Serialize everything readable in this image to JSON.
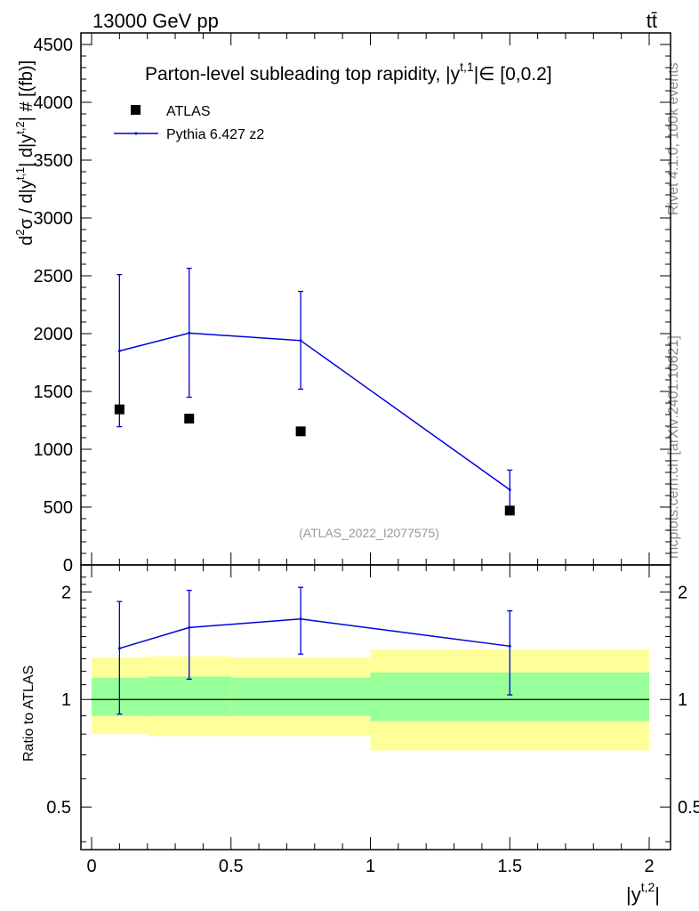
{
  "header": {
    "energy_label": "13000 GeV pp",
    "process_label": "tt̄"
  },
  "side_labels": {
    "rivet": "Rivet 4.1.0,  100k events",
    "mcplots": "mcplots.cern.ch [arXiv:2401.10621]"
  },
  "colors": {
    "data": "#000000",
    "mc": "#0000dd",
    "band_inner": "#99ff99",
    "band_outer": "#ffff99",
    "watermark": "#999999",
    "side_text": "#888888"
  },
  "chart_data": [
    {
      "type": "scatter",
      "title": "Parton-level subleading top rapidity, |y^{t,1}| ∈ [0,0.2]",
      "title_main": "Parton-level subleading top rapidity, |y",
      "title_sup": "t,1",
      "title_tail": "|∈ [0,0.2]",
      "ylabel": "d²σ / d|y^{t,1}| d|y^{t,2}| # [(fb)]",
      "ylabel_parts": {
        "a": "d",
        "b": "2",
        "c": "σ / d|y",
        "d": "t,1",
        "e": "| d|y",
        "f": "t,2",
        "g": "| # [(fb)]"
      },
      "watermark": "(ATLAS_2022_I2077575)",
      "xlim": [
        0,
        2
      ],
      "ylim": [
        0,
        4600
      ],
      "yticks": [
        0,
        500,
        1000,
        1500,
        2000,
        2500,
        3000,
        3500,
        4000,
        4500
      ],
      "ytick_labels": [
        "0",
        "500",
        "1000",
        "1500",
        "2000",
        "2500",
        "3000",
        "3500",
        "4000",
        "4500"
      ],
      "legend": {
        "position": "top-left",
        "data_label": "ATLAS",
        "mc_label": "Pythia 6.427 z2"
      },
      "series": [
        {
          "name": "ATLAS",
          "x": [
            0.1,
            0.35,
            0.75,
            1.5
          ],
          "values": [
            1345,
            1265,
            1155,
            470
          ]
        },
        {
          "name": "Pythia 6.427 z2",
          "x": [
            0.1,
            0.35,
            0.75,
            1.5
          ],
          "values": [
            1850,
            2005,
            1940,
            650
          ],
          "err_low": [
            655,
            555,
            420,
            200
          ],
          "err_high": [
            660,
            560,
            425,
            170
          ]
        }
      ]
    },
    {
      "type": "line",
      "ylabel": "Ratio to ATLAS",
      "xlabel": "|y^{t,2}|",
      "xlabel_main": "|y",
      "xlabel_sup": "t,2",
      "xlabel_tail": "|",
      "xlim": [
        0,
        2
      ],
      "ylim": [
        0.38,
        2.38
      ],
      "xticks": [
        0,
        0.5,
        1,
        1.5,
        2
      ],
      "xtick_labels": [
        "0",
        "0.5",
        "1",
        "1.5",
        "2"
      ],
      "yticks": [
        0.5,
        1,
        2
      ],
      "ytick_labels": [
        "0.5",
        "1",
        "2"
      ],
      "bands": [
        {
          "x0": 0.0,
          "x1": 0.2,
          "inner": [
            0.9,
            1.15
          ],
          "outer": [
            0.8,
            1.31
          ]
        },
        {
          "x0": 0.2,
          "x1": 0.5,
          "inner": [
            0.9,
            1.16
          ],
          "outer": [
            0.79,
            1.32
          ]
        },
        {
          "x0": 0.5,
          "x1": 1.0,
          "inner": [
            0.9,
            1.15
          ],
          "outer": [
            0.79,
            1.31
          ]
        },
        {
          "x0": 1.0,
          "x1": 2.0,
          "inner": [
            0.87,
            1.19
          ],
          "outer": [
            0.72,
            1.38
          ]
        }
      ],
      "series": [
        {
          "name": "Pythia 6.427 z2",
          "x": [
            0.1,
            0.35,
            0.75,
            1.5
          ],
          "values": [
            1.39,
            1.59,
            1.68,
            1.41
          ],
          "err_low": [
            0.48,
            0.45,
            0.34,
            0.38
          ],
          "err_high": [
            0.49,
            0.43,
            0.38,
            0.36
          ]
        }
      ]
    }
  ]
}
